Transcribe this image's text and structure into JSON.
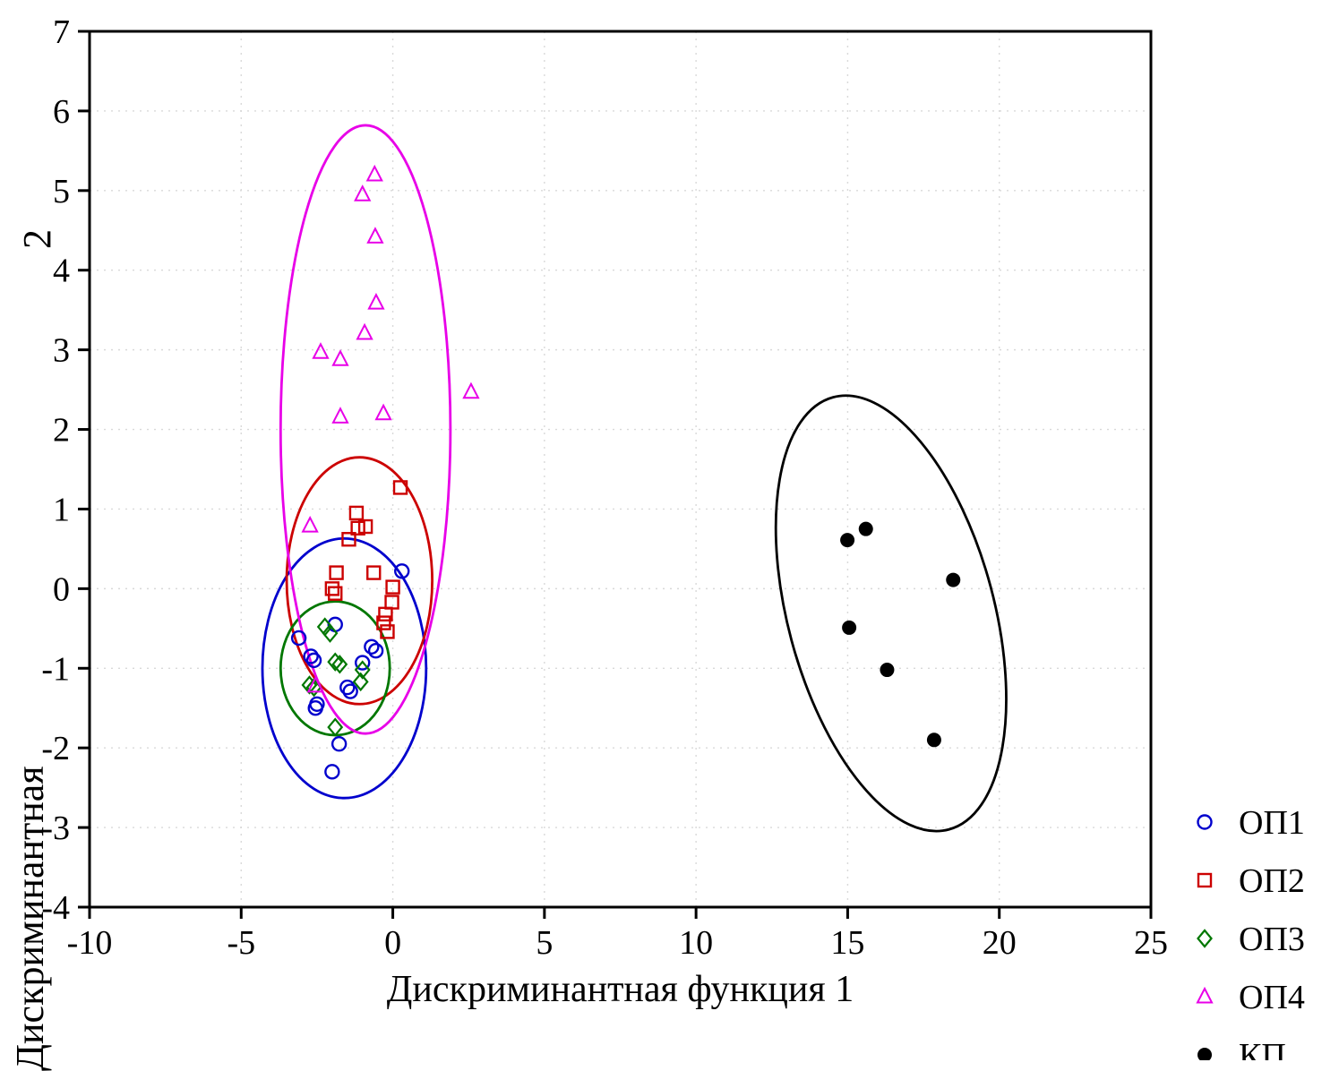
{
  "labels": {
    "x_axis": "Дискриминантная функция 1",
    "y_axis_main": "Дискриминантная",
    "y_axis_number": "2"
  },
  "chart_data": {
    "type": "scatter",
    "title": "",
    "xlabel": "Дискриминантная функция 1",
    "ylabel": "Дискриминантная 2",
    "xlim": [
      -10,
      25
    ],
    "ylim": [
      -4,
      7
    ],
    "xticks": [
      -10,
      -5,
      0,
      5,
      10,
      15,
      20,
      25
    ],
    "yticks": [
      -4,
      -3,
      -2,
      -1,
      0,
      1,
      2,
      3,
      4,
      5,
      6,
      7
    ],
    "grid": true,
    "legend_position": "outside-bottom-right",
    "series": [
      {
        "name": "ОП1",
        "marker": "circle",
        "filled": false,
        "color": "#0000cd",
        "points": [
          [
            0.3,
            0.22
          ],
          [
            -1.9,
            -0.45
          ],
          [
            -3.1,
            -0.62
          ],
          [
            -0.7,
            -0.73
          ],
          [
            -0.56,
            -0.78
          ],
          [
            -2.7,
            -0.85
          ],
          [
            -2.6,
            -0.9
          ],
          [
            -1.0,
            -0.93
          ],
          [
            -1.5,
            -1.24
          ],
          [
            -1.4,
            -1.29
          ],
          [
            -2.5,
            -1.45
          ],
          [
            -2.55,
            -1.5
          ],
          [
            -1.77,
            -1.95
          ],
          [
            -2.0,
            -2.3
          ]
        ]
      },
      {
        "name": "ОП2",
        "marker": "square",
        "filled": false,
        "color": "#cc0000",
        "points": [
          [
            0.25,
            1.27
          ],
          [
            -1.2,
            0.95
          ],
          [
            -0.9,
            0.78
          ],
          [
            -1.15,
            0.76
          ],
          [
            -1.45,
            0.62
          ],
          [
            -1.86,
            0.2
          ],
          [
            -0.63,
            0.2
          ],
          [
            -2.0,
            0.0
          ],
          [
            -1.9,
            -0.06
          ],
          [
            0.0,
            0.02
          ],
          [
            -0.03,
            -0.17
          ],
          [
            -0.24,
            -0.32
          ],
          [
            -0.3,
            -0.43
          ],
          [
            -0.18,
            -0.54
          ]
        ]
      },
      {
        "name": "ОП3",
        "marker": "diamond",
        "filled": false,
        "color": "#007700",
        "points": [
          [
            -2.24,
            -0.48
          ],
          [
            -2.07,
            -0.56
          ],
          [
            -1.9,
            -0.92
          ],
          [
            -1.75,
            -0.95
          ],
          [
            -1.0,
            -1.02
          ],
          [
            -2.75,
            -1.21
          ],
          [
            -2.6,
            -1.24
          ],
          [
            -1.06,
            -1.17
          ],
          [
            -1.9,
            -1.74
          ]
        ]
      },
      {
        "name": "ОП4",
        "marker": "triangle",
        "filled": false,
        "color": "#e800e8",
        "points": [
          [
            -0.6,
            5.2
          ],
          [
            -1.0,
            4.95
          ],
          [
            -0.58,
            4.42
          ],
          [
            -0.55,
            3.59
          ],
          [
            -0.93,
            3.21
          ],
          [
            -2.38,
            2.97
          ],
          [
            -1.73,
            2.88
          ],
          [
            -1.73,
            2.16
          ],
          [
            -0.31,
            2.2
          ],
          [
            2.58,
            2.47
          ],
          [
            -2.73,
            0.79
          ],
          [
            -2.55,
            -1.22
          ]
        ]
      },
      {
        "name": "КП",
        "marker": "circle",
        "filled": true,
        "color": "#000000",
        "points": [
          [
            14.99,
            0.61
          ],
          [
            15.6,
            0.75
          ],
          [
            18.48,
            0.11
          ],
          [
            15.05,
            -0.49
          ],
          [
            16.3,
            -1.02
          ],
          [
            17.85,
            -1.9
          ]
        ]
      }
    ],
    "ellipses": [
      {
        "series": "ОП1",
        "color": "#0000cd",
        "cx": -1.6,
        "cy": -1.0,
        "rx": 2.7,
        "ry": 1.63,
        "rotation": 0
      },
      {
        "series": "ОП2",
        "color": "#cc0000",
        "cx": -1.1,
        "cy": 0.1,
        "rx": 2.4,
        "ry": 1.55,
        "rotation": 0
      },
      {
        "series": "ОП3",
        "color": "#007700",
        "cx": -1.9,
        "cy": -1.0,
        "rx": 1.8,
        "ry": 0.84,
        "rotation": 0
      },
      {
        "series": "ОП4",
        "color": "#e800e8",
        "cx": -0.9,
        "cy": 2.0,
        "rx": 2.8,
        "ry": 3.82,
        "rotation": 0
      },
      {
        "series": "КП",
        "color": "#000000",
        "cx": 16.43,
        "cy": -0.31,
        "rx": 3.4,
        "ry": 2.81,
        "rotation": -15
      }
    ]
  }
}
